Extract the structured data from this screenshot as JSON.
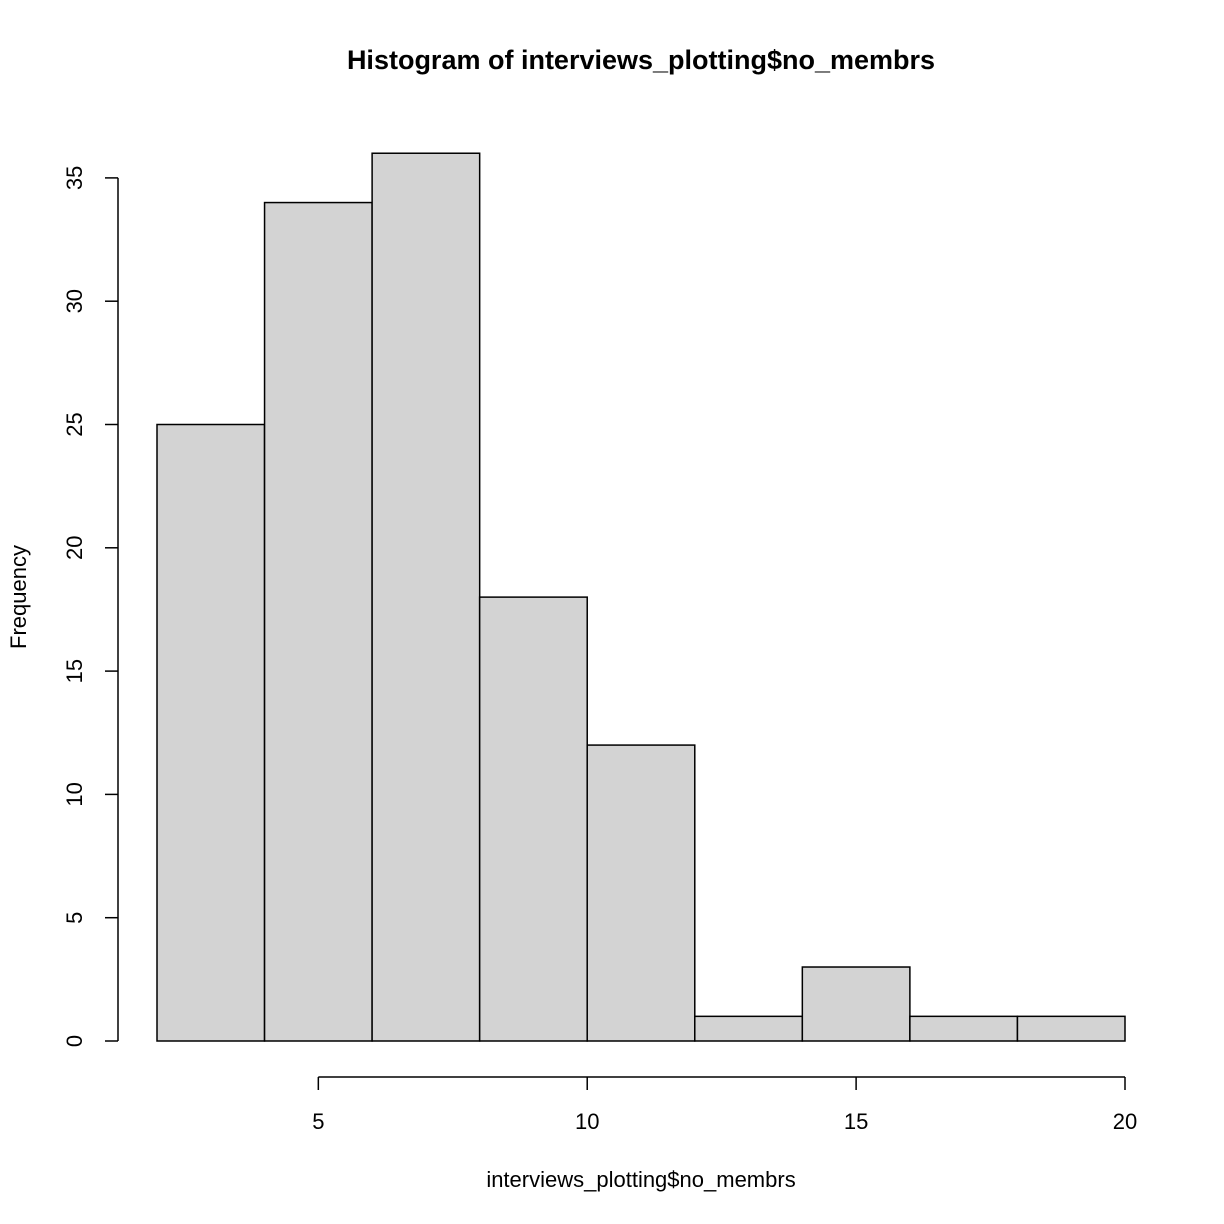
{
  "chart_data": {
    "type": "bar",
    "title": "Histogram of interviews_plotting$no_membrs",
    "xlabel": "interviews_plotting$no_membrs",
    "ylabel": "Frequency",
    "bins": [
      {
        "x0": 2,
        "x1": 4,
        "count": 25
      },
      {
        "x0": 4,
        "x1": 6,
        "count": 34
      },
      {
        "x0": 6,
        "x1": 8,
        "count": 36
      },
      {
        "x0": 8,
        "x1": 10,
        "count": 18
      },
      {
        "x0": 10,
        "x1": 12,
        "count": 12
      },
      {
        "x0": 12,
        "x1": 14,
        "count": 1
      },
      {
        "x0": 14,
        "x1": 16,
        "count": 3
      },
      {
        "x0": 16,
        "x1": 18,
        "count": 1
      },
      {
        "x0": 18,
        "x1": 20,
        "count": 1
      }
    ],
    "xlim": [
      2,
      20
    ],
    "ylim": [
      0,
      36
    ],
    "x_ticks": [
      5,
      10,
      15,
      20
    ],
    "y_ticks": [
      0,
      5,
      10,
      15,
      20,
      25,
      30,
      35
    ],
    "bar_fill": "#d3d3d3",
    "bar_stroke": "#000000",
    "grid": false
  }
}
